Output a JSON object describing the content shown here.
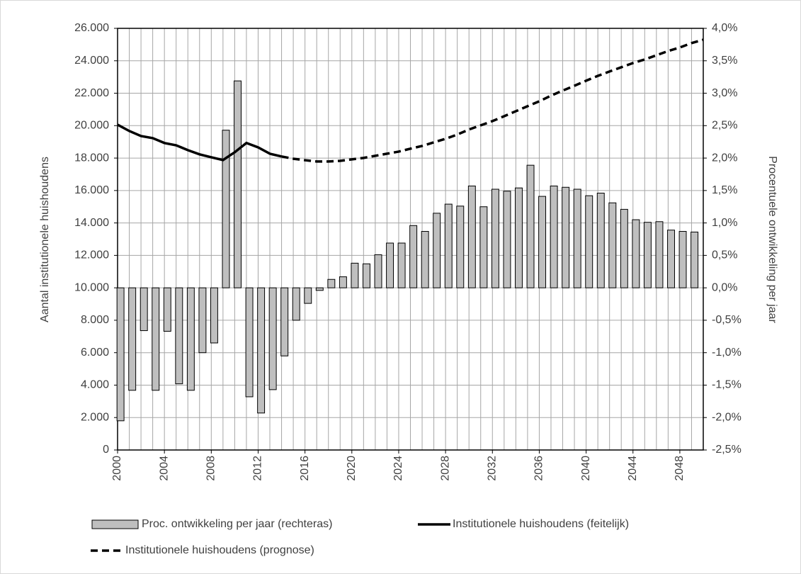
{
  "chart_data": {
    "type": "combo",
    "y_label": "Aantal institutionele huishoudens",
    "y2_label": "Procentuele ontwikkeling per jaar",
    "x": [
      2000,
      2001,
      2002,
      2003,
      2004,
      2005,
      2006,
      2007,
      2008,
      2009,
      2010,
      2011,
      2012,
      2013,
      2014,
      2015,
      2016,
      2017,
      2018,
      2019,
      2020,
      2021,
      2022,
      2023,
      2024,
      2025,
      2026,
      2027,
      2028,
      2029,
      2030,
      2031,
      2032,
      2033,
      2034,
      2035,
      2036,
      2037,
      2038,
      2039,
      2040,
      2041,
      2042,
      2043,
      2044,
      2045,
      2046,
      2047,
      2048,
      2049,
      2050
    ],
    "xlim": [
      2000,
      2050
    ],
    "xticks": [
      2000,
      2004,
      2008,
      2012,
      2016,
      2020,
      2024,
      2028,
      2032,
      2036,
      2040,
      2044,
      2048
    ],
    "ylim": [
      0,
      26000
    ],
    "yticks": [
      {
        "value": 0,
        "label": "0"
      },
      {
        "value": 2000,
        "label": "2.000"
      },
      {
        "value": 4000,
        "label": "4.000"
      },
      {
        "value": 6000,
        "label": "6.000"
      },
      {
        "value": 8000,
        "label": "8.000"
      },
      {
        "value": 10000,
        "label": "10.000"
      },
      {
        "value": 12000,
        "label": "12.000"
      },
      {
        "value": 14000,
        "label": "14.000"
      },
      {
        "value": 16000,
        "label": "16.000"
      },
      {
        "value": 18000,
        "label": "18.000"
      },
      {
        "value": 20000,
        "label": "20.000"
      },
      {
        "value": 22000,
        "label": "22.000"
      },
      {
        "value": 24000,
        "label": "24.000"
      },
      {
        "value": 26000,
        "label": "26.000"
      }
    ],
    "y2lim": [
      -2.5,
      4.0
    ],
    "y2ticks": [
      {
        "value": -2.5,
        "label": "-2,5%"
      },
      {
        "value": -2.0,
        "label": "-2,0%"
      },
      {
        "value": -1.5,
        "label": "-1,5%"
      },
      {
        "value": -1.0,
        "label": "-1,0%"
      },
      {
        "value": -0.5,
        "label": "-0,5%"
      },
      {
        "value": 0,
        "label": "0,0%"
      },
      {
        "value": 0.5,
        "label": "0,5%"
      },
      {
        "value": 1.0,
        "label": "1,0%"
      },
      {
        "value": 1.5,
        "label": "1,5%"
      },
      {
        "value": 2.0,
        "label": "2,0%"
      },
      {
        "value": 2.5,
        "label": "2,5%"
      },
      {
        "value": 3.0,
        "label": "3,0%"
      },
      {
        "value": 3.5,
        "label": "3,5%"
      },
      {
        "value": 4.0,
        "label": "4,0%"
      }
    ],
    "grid": true,
    "series": [
      {
        "name": "Proc. ontwikkeling per jaar (rechteras)",
        "type": "bar",
        "axis": "y2",
        "color": "#bfbfbf",
        "values": [
          -2.05,
          -1.58,
          -0.66,
          -1.58,
          -0.67,
          -1.48,
          -1.58,
          -1.0,
          -0.85,
          2.43,
          3.19,
          -1.68,
          -1.93,
          -1.57,
          -1.05,
          -0.5,
          -0.24,
          -0.04,
          0.13,
          0.17,
          0.38,
          0.37,
          0.51,
          0.69,
          0.69,
          0.96,
          0.87,
          1.15,
          1.29,
          1.26,
          1.57,
          1.25,
          1.52,
          1.49,
          1.54,
          1.89,
          1.41,
          1.57,
          1.55,
          1.52,
          1.42,
          1.46,
          1.31,
          1.21,
          1.05,
          1.01,
          1.02,
          0.89,
          0.87,
          0.86,
          null
        ]
      },
      {
        "name": "Institutionele huishoudens (feitelijk)",
        "type": "line",
        "color": "#000000",
        "dashed": false,
        "values": [
          20060,
          19670,
          19360,
          19230,
          18930,
          18790,
          18490,
          18230,
          18050,
          17880,
          18360,
          18930,
          18660,
          18270,
          18100,
          null,
          null,
          null,
          null,
          null,
          null,
          null,
          null,
          null,
          null,
          null,
          null,
          null,
          null,
          null,
          null,
          null,
          null,
          null,
          null,
          null,
          null,
          null,
          null,
          null,
          null,
          null,
          null,
          null,
          null,
          null,
          null,
          null,
          null,
          null,
          null
        ]
      },
      {
        "name": "Institutionele huishoudens (prognose)",
        "type": "line",
        "color": "#000000",
        "dashed": true,
        "values": [
          null,
          null,
          null,
          null,
          null,
          null,
          null,
          null,
          null,
          null,
          null,
          null,
          null,
          null,
          18100,
          17960,
          17870,
          17790,
          17790,
          17830,
          17920,
          18010,
          18140,
          18270,
          18400,
          18580,
          18750,
          18970,
          19190,
          19450,
          19760,
          20020,
          20280,
          20580,
          20890,
          21200,
          21500,
          21850,
          22160,
          22460,
          22770,
          23070,
          23340,
          23600,
          23860,
          24080,
          24340,
          24600,
          24820,
          25090,
          25300
        ]
      }
    ]
  }
}
